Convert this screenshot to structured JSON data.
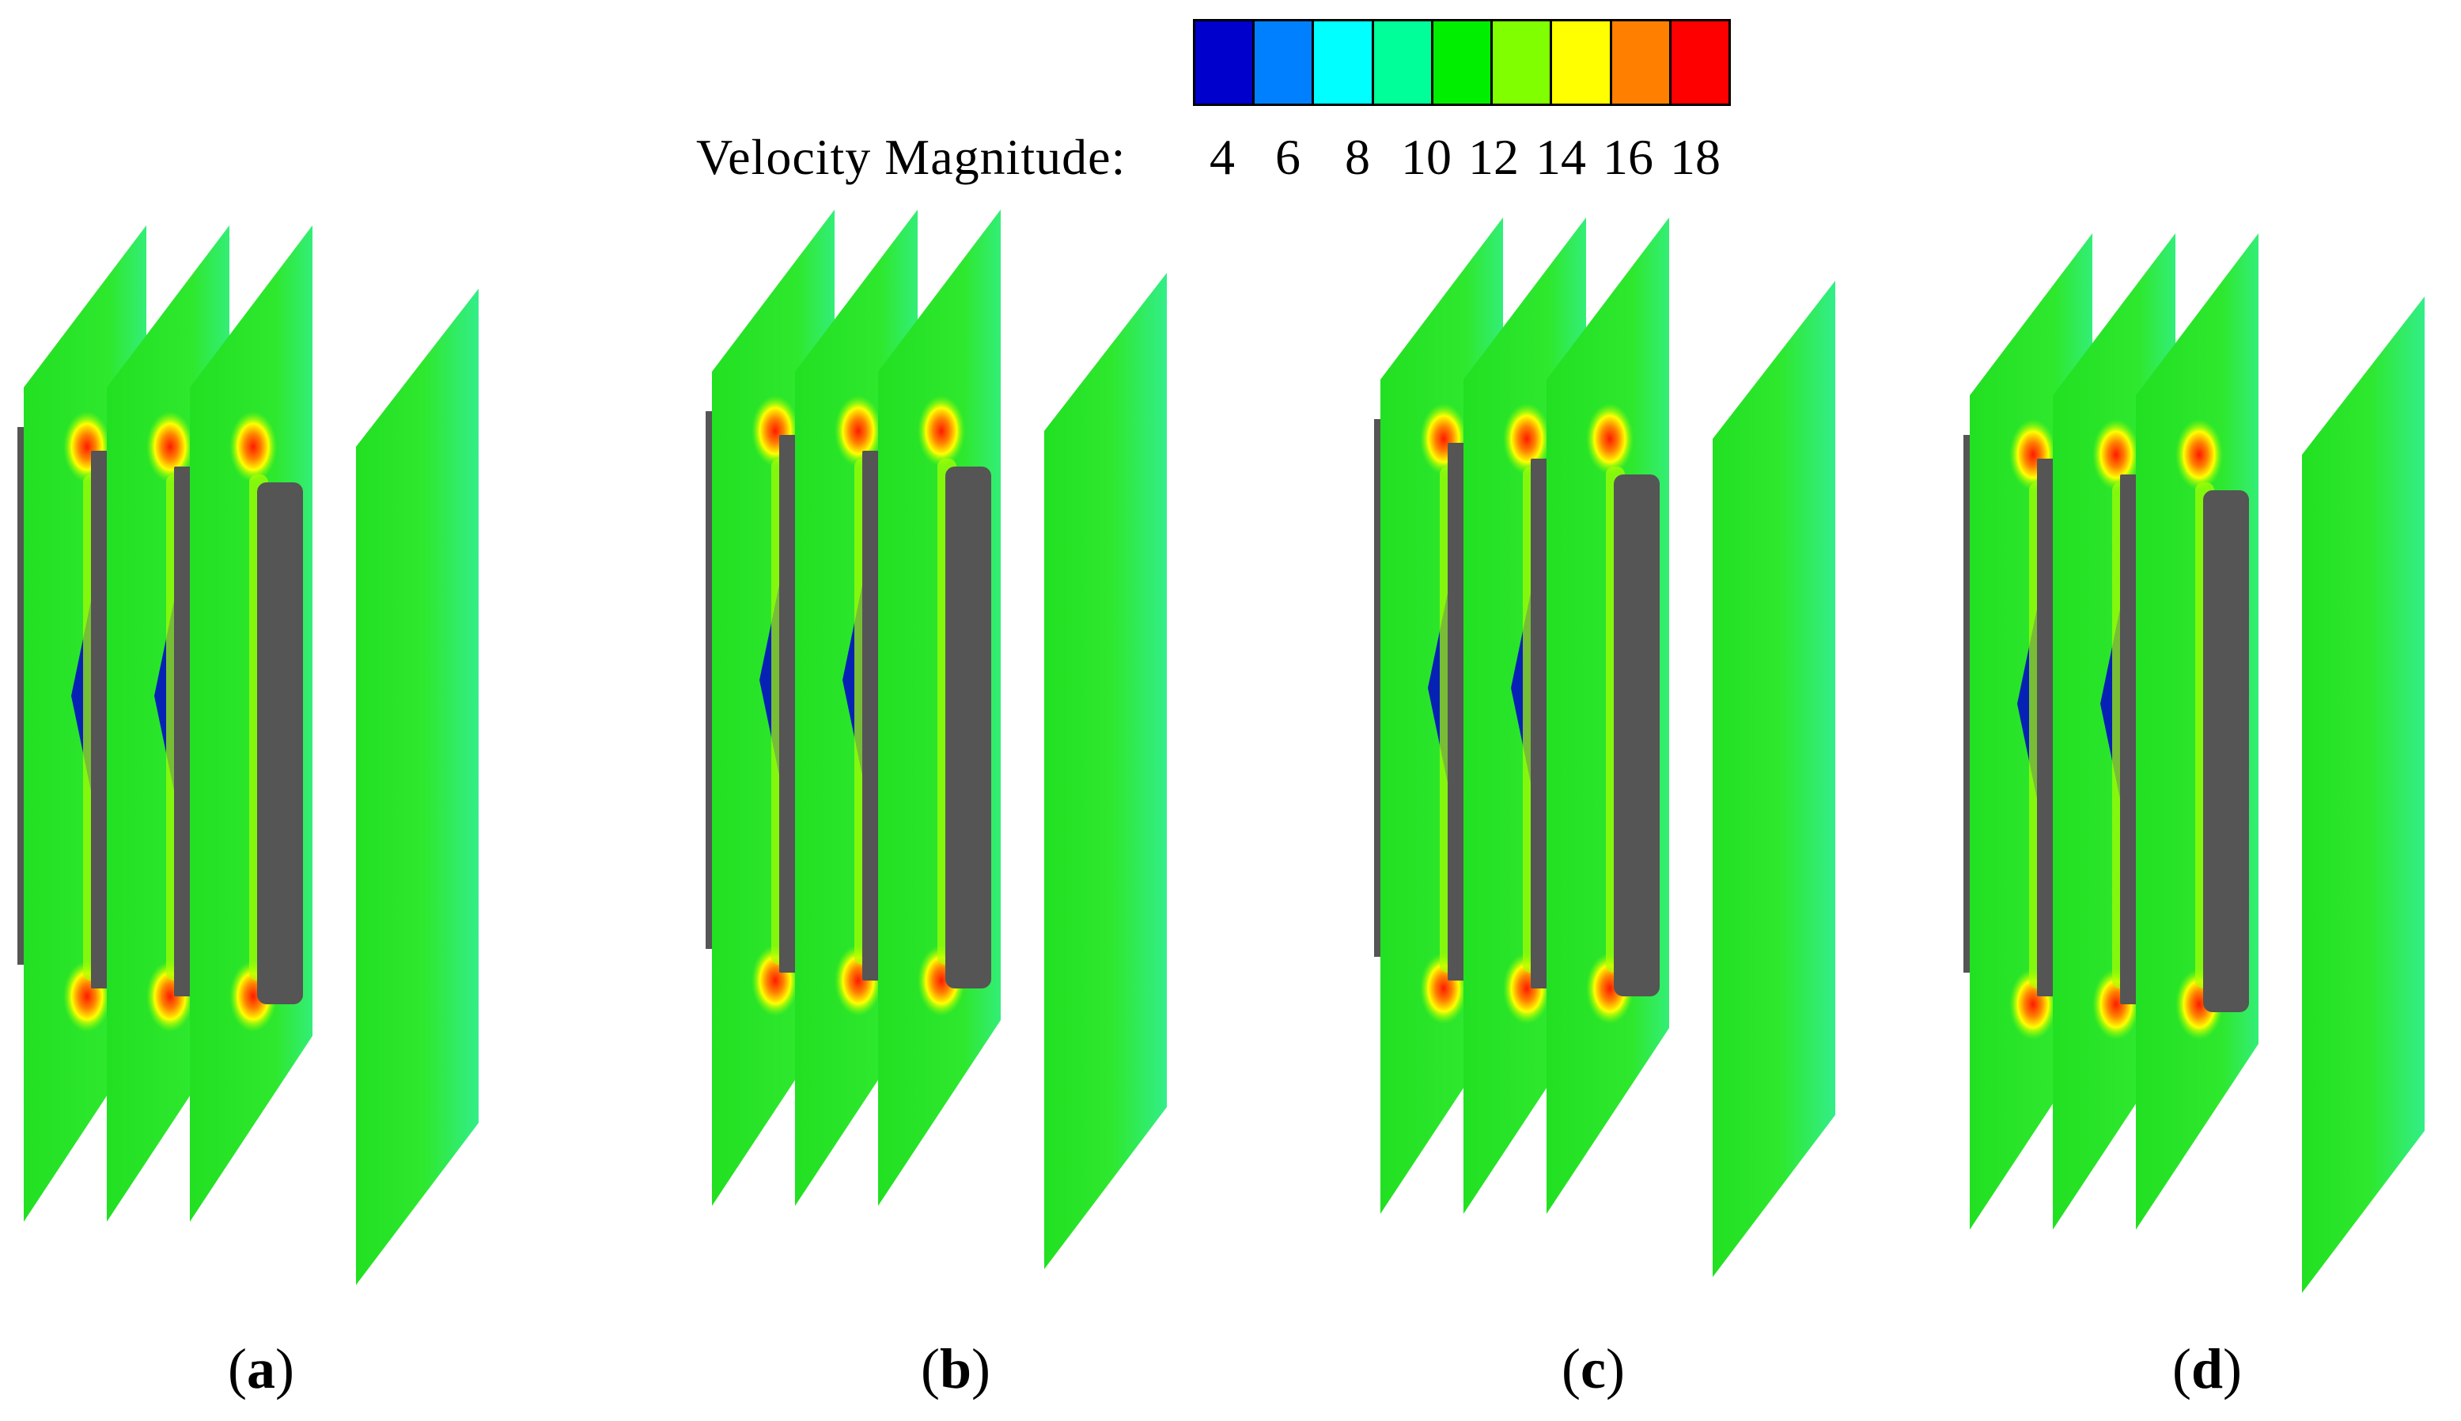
{
  "legend": {
    "title": "Velocity Magnitude:",
    "ticks": [
      "4",
      "6",
      "8",
      "10",
      "12",
      "14",
      "16",
      "18"
    ],
    "colors": [
      "#0000cc",
      "#0080ff",
      "#00ffff",
      "#00ff99",
      "#00ee00",
      "#80ff00",
      "#ffff00",
      "#ff8000",
      "#ff0000"
    ]
  },
  "panels": [
    {
      "id": "a",
      "label": "a"
    },
    {
      "id": "b",
      "label": "b"
    },
    {
      "id": "c",
      "label": "c"
    },
    {
      "id": "d",
      "label": "d"
    }
  ],
  "colors": {
    "plane_base": "#2ce82c",
    "plane_edge": "#33ee88",
    "plate": "#555555",
    "low_velocity": "#0000cc",
    "high_velocity": "#ff2000"
  }
}
